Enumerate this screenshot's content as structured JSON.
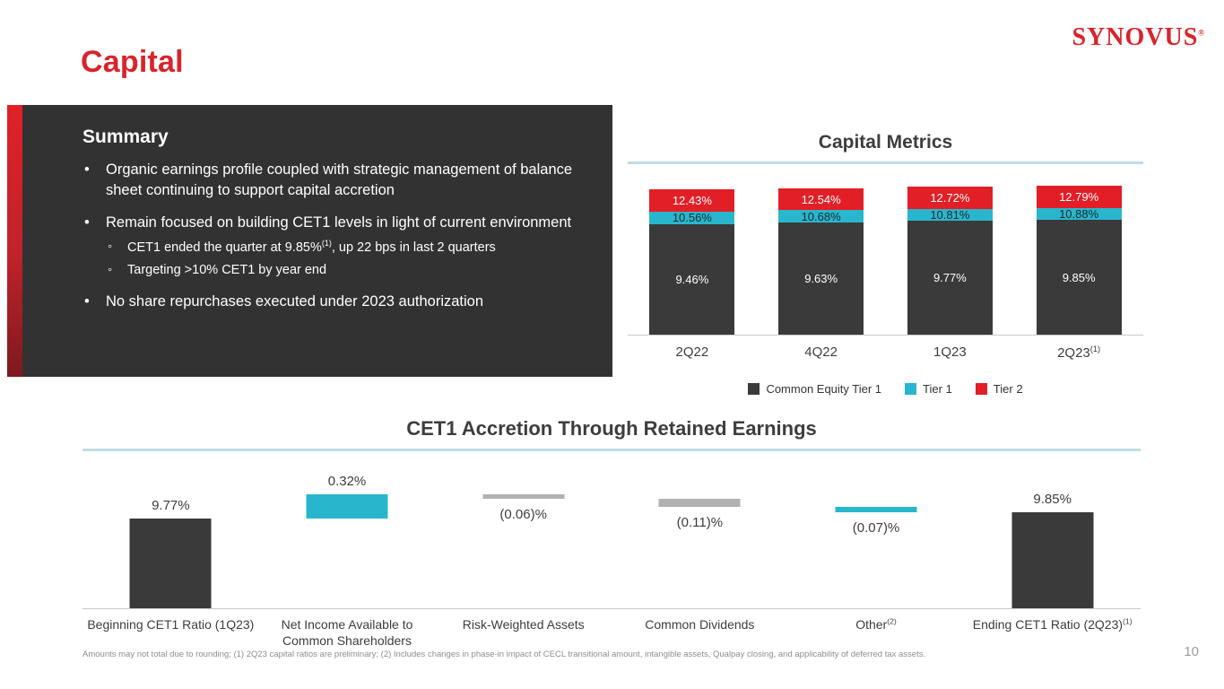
{
  "theme": {
    "brand_red": "#d9242b",
    "chart_red": "#e21f26",
    "cyan": "#29b6cc",
    "dark_bar": "#3a3a3a",
    "gray_bar": "#b1b1b1",
    "divider_blue": "#bfdde6"
  },
  "slide": {
    "title": "Capital",
    "logo_text": "SYNOVUS",
    "logo_reg": "®",
    "page_number": "10",
    "footnote": "Amounts may not total due to rounding; (1) 2Q23 capital ratios are preliminary; (2) Includes changes in phase-in impact of CECL transitional amount, intangible assets, Qualpay closing, and applicability of deferred tax assets."
  },
  "summary": {
    "heading": "Summary",
    "items": [
      {
        "level": 1,
        "parts": [
          {
            "t": "Organic earnings profile coupled with strategic management of balance sheet continuing to support capital accretion"
          }
        ]
      },
      {
        "level": 1,
        "parts": [
          {
            "t": "Remain focused on building CET1 levels in light of current environment"
          }
        ]
      },
      {
        "level": 2,
        "parts": [
          {
            "t": "CET1 ended the quarter at 9.85%"
          },
          {
            "sup": "(1)"
          },
          {
            "t": ", up 22 bps in last 2 quarters"
          }
        ]
      },
      {
        "level": 2,
        "parts": [
          {
            "t": "Targeting >10% CET1 by year end"
          }
        ]
      },
      {
        "level": 1,
        "parts": [
          {
            "t": "No share repurchases executed under 2023 authorization"
          }
        ]
      }
    ]
  },
  "chart_data": [
    {
      "type": "bar",
      "subtype": "stacked",
      "title": "Capital Metrics",
      "xlabel": "",
      "ylabel": "",
      "ylim": [
        0,
        13
      ],
      "legend_position": "bottom",
      "categories": [
        {
          "text": "2Q22"
        },
        {
          "text": "4Q22"
        },
        {
          "text": "1Q23"
        },
        {
          "text": "2Q23",
          "sup": "(1)"
        }
      ],
      "series": [
        {
          "name": "Common Equity Tier 1",
          "color": "#3a3a3a",
          "label_color": "#ffffff",
          "values": [
            9.46,
            9.63,
            9.77,
            9.85
          ],
          "labels": [
            "9.46%",
            "9.63%",
            "9.77%",
            "9.85%"
          ]
        },
        {
          "name": "Tier 1",
          "color": "#29b6cc",
          "label_color": "#1d2a2e",
          "values": [
            10.56,
            10.68,
            10.81,
            10.88
          ],
          "labels": [
            "10.56%",
            "10.68%",
            "10.81%",
            "10.88%"
          ]
        },
        {
          "name": "Tier 2",
          "color": "#e21f26",
          "label_color": "#ffffff",
          "values": [
            12.43,
            12.54,
            12.72,
            12.79
          ],
          "labels": [
            "12.43%",
            "12.54%",
            "12.72%",
            "12.79%"
          ]
        }
      ]
    },
    {
      "type": "waterfall",
      "title": "CET1 Accretion Through Retained Earnings",
      "xlabel": "",
      "ylabel": "",
      "items": [
        {
          "label": {
            "text": "Beginning CET1 Ratio (1Q23)"
          },
          "kind": "start",
          "value": 9.77,
          "value_label": "9.77%",
          "color": "#3a3a3a",
          "label_pos": "above"
        },
        {
          "label": {
            "text": "Net Income Available to Common Shareholders"
          },
          "kind": "delta",
          "value": 0.32,
          "value_label": "0.32%",
          "color": "#29b6cc",
          "label_pos": "above"
        },
        {
          "label": {
            "text": "Risk-Weighted Assets"
          },
          "kind": "delta",
          "value": -0.06,
          "value_label": "(0.06)%",
          "color": "#b1b1b1",
          "label_pos": "below"
        },
        {
          "label": {
            "text": "Common Dividends"
          },
          "kind": "delta",
          "value": -0.11,
          "value_label": "(0.11)%",
          "color": "#b1b1b1",
          "label_pos": "below"
        },
        {
          "label": {
            "text": "Other",
            "sup": "(2)"
          },
          "kind": "delta",
          "value": -0.07,
          "value_label": "(0.07)%",
          "color": "#29b6cc",
          "label_pos": "below"
        },
        {
          "label": {
            "text": "Ending CET1 Ratio (2Q23)",
            "sup": "(1)"
          },
          "kind": "end",
          "value": 9.85,
          "value_label": "9.85%",
          "color": "#3a3a3a",
          "label_pos": "above"
        }
      ]
    }
  ]
}
